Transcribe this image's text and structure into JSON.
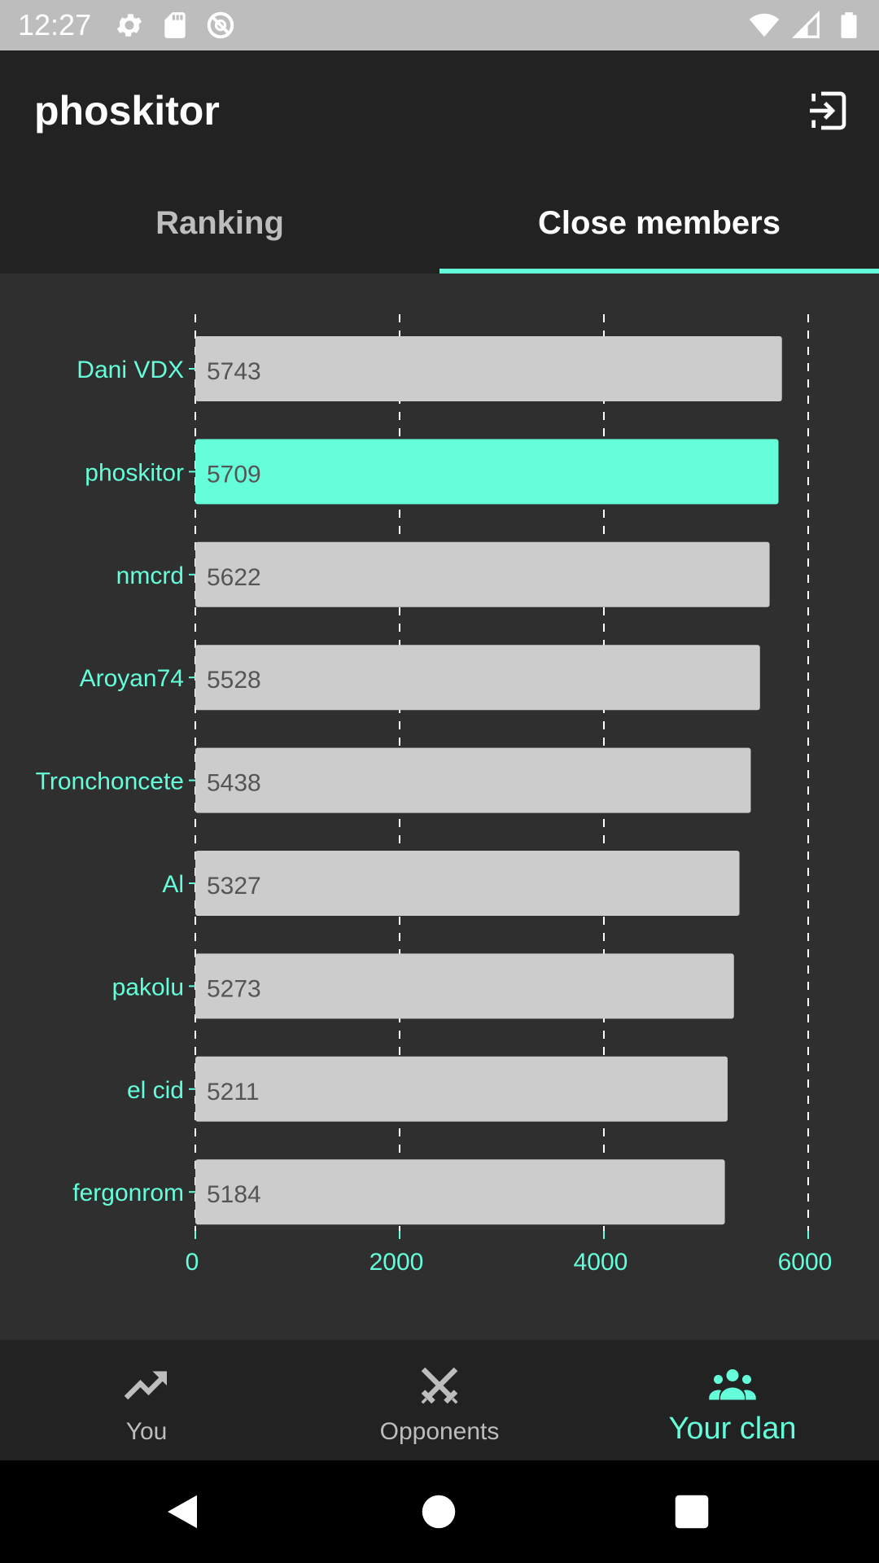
{
  "status_bar": {
    "time": "12:27",
    "left_icons": [
      "gear-icon",
      "sd-card-icon",
      "no-sync-icon"
    ],
    "right_icons": [
      "wifi-icon",
      "signal-icon",
      "battery-icon"
    ]
  },
  "app_bar": {
    "title": "phoskitor",
    "action_icon": "logout-icon"
  },
  "tabs": [
    {
      "label": "Ranking",
      "selected": false
    },
    {
      "label": "Close members",
      "selected": true
    }
  ],
  "colors": {
    "accent": "#64ffda",
    "bar": "#cccccc",
    "bar_highlight": "#64ffda",
    "background": "#2f2f2f",
    "appbar": "#222222"
  },
  "chart_data": {
    "type": "bar",
    "orientation": "horizontal",
    "categories": [
      "Dani VDX",
      "phoskitor",
      "nmcrd",
      "Aroyan74",
      "Tronchoncete",
      "Al",
      "pakolu",
      "el cid",
      "fergonrom"
    ],
    "values": [
      5743,
      5709,
      5622,
      5528,
      5438,
      5327,
      5273,
      5211,
      5184
    ],
    "value_labels": [
      "5743",
      "5709",
      "5622",
      "5528",
      "5438",
      "5327",
      "5273",
      "5211",
      "5184"
    ],
    "highlight": "phoskitor",
    "xlim": [
      0,
      6000
    ],
    "x_ticks": [
      0,
      2000,
      4000,
      6000
    ],
    "x_tick_labels": [
      "0",
      "2000",
      "4000",
      "6000"
    ],
    "grid": "vertical-dashed"
  },
  "bottom_nav": [
    {
      "label": "You",
      "icon": "trending-up-icon",
      "active": false
    },
    {
      "label": "Opponents",
      "icon": "crossed-swords-icon",
      "active": false
    },
    {
      "label": "Your clan",
      "icon": "group-icon",
      "active": true
    }
  ],
  "system_nav": [
    "back-icon",
    "home-icon",
    "recents-icon"
  ]
}
